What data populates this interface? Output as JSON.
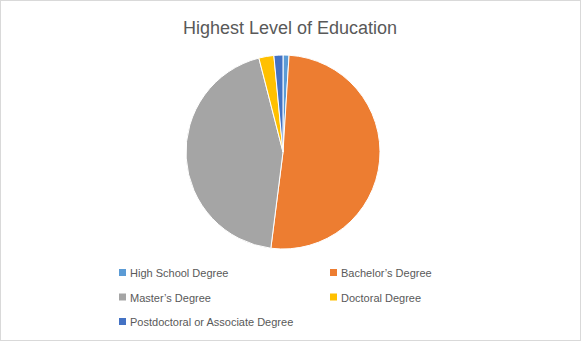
{
  "chart_data": {
    "type": "pie",
    "title": "Highest Level of Education",
    "categories": [
      "High School Degree",
      "Bachelor’s Degree",
      "Master’s Degree",
      "Doctoral Degree",
      "Postdoctoral or Associate Degree"
    ],
    "values": [
      1,
      51,
      44,
      2.5,
      1.5
    ],
    "colors": [
      "#5b9bd5",
      "#ed7d31",
      "#a5a5a5",
      "#ffc000",
      "#4472c4"
    ],
    "legend": "bottom"
  }
}
